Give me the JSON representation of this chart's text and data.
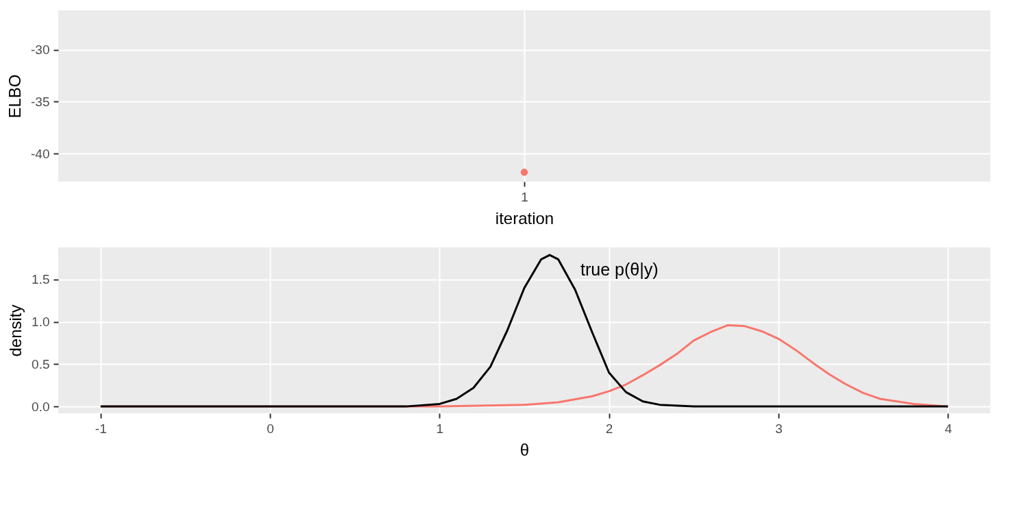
{
  "chart_data": [
    {
      "type": "scatter",
      "xlabel": "iteration",
      "ylabel": "ELBO",
      "categories": [
        "1"
      ],
      "values": [
        -41.8
      ],
      "color": "#f8766d",
      "ylim": [
        -42.7,
        -26.2
      ],
      "yticks": [
        -40,
        -35,
        -30
      ],
      "grid": true,
      "marker": "circle"
    },
    {
      "type": "line",
      "xlabel": "θ",
      "ylabel": "density",
      "xlim": [
        -1.25,
        4.25
      ],
      "xticks": [
        -1,
        0,
        1,
        2,
        3,
        4
      ],
      "ylim": [
        -0.08,
        1.88
      ],
      "yticks": [
        {
          "value": 0,
          "label": "0.0"
        },
        0.5,
        {
          "value": 1,
          "label": "1.0"
        },
        1.5
      ],
      "grid": true,
      "line_style": "solid",
      "annotations": [
        "true p(θ|y)"
      ],
      "series": [
        {
          "color": "#f8766d",
          "x": [
            -1,
            0,
            1,
            1.5,
            1.7,
            1.9,
            2.0,
            2.1,
            2.2,
            2.3,
            2.4,
            2.5,
            2.6,
            2.7,
            2.8,
            2.9,
            3.0,
            3.1,
            3.2,
            3.3,
            3.4,
            3.5,
            3.6,
            3.8,
            4.0
          ],
          "values": [
            0,
            0,
            0,
            0.02,
            0.05,
            0.12,
            0.18,
            0.26,
            0.37,
            0.49,
            0.62,
            0.78,
            0.88,
            0.96,
            0.95,
            0.89,
            0.8,
            0.67,
            0.52,
            0.38,
            0.26,
            0.16,
            0.09,
            0.03,
            0
          ]
        },
        {
          "color": "#000000",
          "x": [
            -1,
            0,
            0.8,
            1.0,
            1.1,
            1.2,
            1.3,
            1.4,
            1.5,
            1.6,
            1.65,
            1.7,
            1.8,
            1.9,
            2.0,
            2.1,
            2.2,
            2.3,
            2.5,
            3,
            4
          ],
          "values": [
            0,
            0,
            0,
            0.03,
            0.09,
            0.22,
            0.47,
            0.9,
            1.4,
            1.74,
            1.79,
            1.74,
            1.38,
            0.88,
            0.4,
            0.17,
            0.06,
            0.02,
            0,
            0,
            0
          ]
        }
      ]
    }
  ]
}
